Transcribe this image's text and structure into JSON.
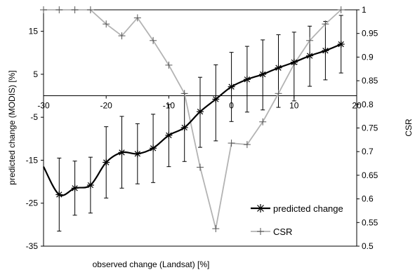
{
  "chart_data": {
    "type": "line",
    "xlabel": "observed change (Landsat) [%]",
    "ylabel": "predicted change (MODIS) [%]",
    "y2label": "CSR",
    "xlim": [
      -30,
      20
    ],
    "ylim": [
      -35,
      20
    ],
    "y2lim": [
      0.5,
      1.0
    ],
    "xticks": [
      -30,
      -20,
      -10,
      0,
      10,
      20
    ],
    "yticks": [
      -35,
      -25,
      -15,
      -5,
      5,
      15
    ],
    "y2ticks": [
      0.5,
      0.55,
      0.6,
      0.65,
      0.7,
      0.75,
      0.8,
      0.85,
      0.9,
      0.95,
      1
    ],
    "xtick_labels": [
      "-30",
      "-20",
      "-10",
      "0",
      "10",
      "20"
    ],
    "ytick_labels": [
      "-35",
      "-25",
      "-15",
      "-5",
      "5",
      "15"
    ],
    "y2tick_labels": [
      "0.5",
      "0.55",
      "0.6",
      "0.65",
      "0.7",
      "0.75",
      "0.8",
      "0.85",
      "0.9",
      "0.95",
      "1"
    ],
    "legend_position": "bottom-right",
    "series": [
      {
        "name": "predicted change",
        "axis": "left",
        "marker": "asterisk",
        "color": "#000000",
        "x": [
          -30,
          -27.5,
          -25,
          -22.5,
          -20,
          -17.5,
          -15,
          -12.5,
          -10,
          -7.5,
          -5,
          -2.5,
          0,
          2.5,
          5,
          7.5,
          10,
          12.5,
          15,
          17.5
        ],
        "y": [
          -16.5,
          -23,
          -21.5,
          -20.8,
          -15.5,
          -13.2,
          -13.5,
          -12.2,
          -9.2,
          -7.4,
          -3.7,
          -0.8,
          2.1,
          3.8,
          5.0,
          6.5,
          7.8,
          9.3,
          10.5,
          12.0
        ],
        "err_low": [
          null,
          -31.5,
          -27.8,
          -27.3,
          -23.8,
          -21.5,
          -20.5,
          -20.2,
          -16.5,
          -15.3,
          -12,
          -10.5,
          -6,
          -3.8,
          -3.3,
          -2.7,
          -1.2,
          2.2,
          3.7,
          5.3
        ],
        "err_high": [
          null,
          -14.5,
          -15.2,
          -14.3,
          -7.2,
          -4.8,
          -6.5,
          -4.3,
          -2.0,
          0.5,
          4.3,
          7.2,
          10.1,
          11.5,
          13.0,
          14.2,
          14.8,
          16.2,
          17.3,
          18.7
        ]
      },
      {
        "name": "CSR",
        "axis": "right",
        "marker": "plus",
        "color": "#b3b3b3",
        "x": [
          -30,
          -27.5,
          -25,
          -22.5,
          -20,
          -17.5,
          -15,
          -12.5,
          -10,
          -7.5,
          -5,
          -2.5,
          0,
          2.5,
          5,
          7.5,
          10,
          12.5,
          15,
          17.5
        ],
        "y": [
          1.0,
          1.0,
          1.0,
          1.0,
          0.97,
          0.945,
          0.983,
          0.935,
          0.883,
          0.823,
          0.667,
          0.537,
          0.718,
          0.715,
          0.763,
          0.823,
          0.885,
          0.935,
          0.97,
          1.0
        ]
      }
    ]
  }
}
